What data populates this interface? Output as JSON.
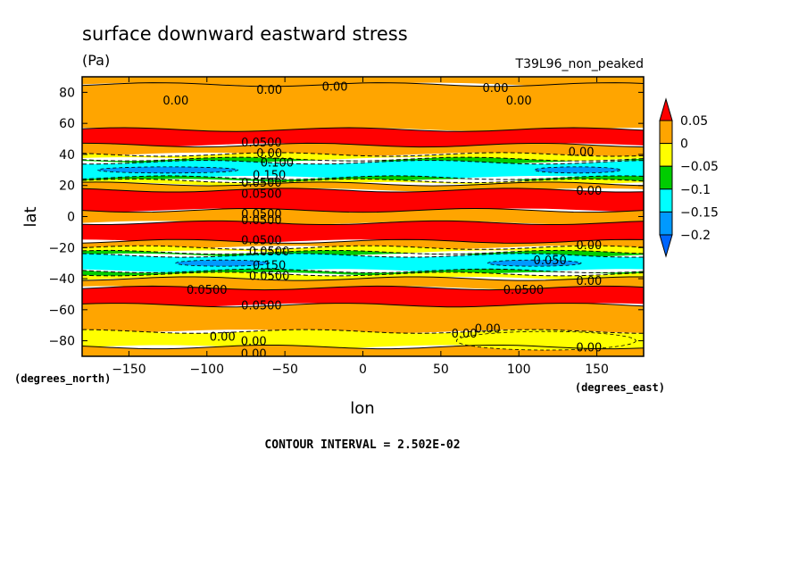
{
  "chart_data": {
    "type": "heatmap",
    "title": "surface downward eastward stress",
    "units": "(Pa)",
    "run_label": "T39L96_non_peaked",
    "xlabel": "lon",
    "ylabel": "lat",
    "x_units": "(degrees_east)",
    "y_units": "(degrees_north)",
    "xlim": [
      -180,
      180
    ],
    "ylim": [
      -90,
      90
    ],
    "x_ticks": [
      -150,
      -100,
      -50,
      0,
      50,
      100,
      150
    ],
    "y_ticks": [
      80,
      60,
      40,
      20,
      0,
      -20,
      -40,
      -60,
      -80
    ],
    "contour_interval_text": "CONTOUR INTERVAL = 2.502E-02",
    "colorbar": {
      "labels": [
        "0.05",
        "0",
        "-0.05",
        "-0.1",
        "-0.15",
        "-0.2"
      ],
      "levels": [
        0.05,
        0,
        -0.05,
        -0.1,
        -0.15,
        -0.2
      ],
      "colors": [
        "#ff0000",
        "#ffa500",
        "#ffff00",
        "#00cc00",
        "#00ffff",
        "#0099ff",
        "#0066ff"
      ]
    },
    "zonal_bands": [
      {
        "lat_min": 85,
        "lat_max": 90,
        "level": "0-0.05"
      },
      {
        "lat_min": 56,
        "lat_max": 85,
        "level": "0-0.05"
      },
      {
        "lat_min": 46,
        "lat_max": 56,
        "level": ">0.05"
      },
      {
        "lat_min": 40,
        "lat_max": 46,
        "level": "0-0.05"
      },
      {
        "lat_min": 37,
        "lat_max": 40,
        "level": "-0.05-0"
      },
      {
        "lat_min": 35,
        "lat_max": 37,
        "level": "-0.1--0.05"
      },
      {
        "lat_min": 25,
        "lat_max": 35,
        "level": "-0.15--0.1"
      },
      {
        "lat_min": 23,
        "lat_max": 25,
        "level": "-0.1--0.05"
      },
      {
        "lat_min": 21,
        "lat_max": 23,
        "level": "-0.05-0"
      },
      {
        "lat_min": 17,
        "lat_max": 21,
        "level": "0-0.05"
      },
      {
        "lat_min": 4,
        "lat_max": 17,
        "level": ">0.05"
      },
      {
        "lat_min": -4,
        "lat_max": 4,
        "level": "0-0.05"
      },
      {
        "lat_min": -16,
        "lat_max": -4,
        "level": ">0.05"
      },
      {
        "lat_min": -20,
        "lat_max": -16,
        "level": "0-0.05"
      },
      {
        "lat_min": -23,
        "lat_max": -20,
        "level": "-0.05-0"
      },
      {
        "lat_min": -25,
        "lat_max": -23,
        "level": "-0.1--0.05"
      },
      {
        "lat_min": -35,
        "lat_max": -25,
        "level": "-0.15--0.1"
      },
      {
        "lat_min": -37,
        "lat_max": -35,
        "level": "-0.1--0.05"
      },
      {
        "lat_min": -40,
        "lat_max": -37,
        "level": "-0.05-0"
      },
      {
        "lat_min": -46,
        "lat_max": -40,
        "level": "0-0.05"
      },
      {
        "lat_min": -57,
        "lat_max": -46,
        "level": ">0.05"
      },
      {
        "lat_min": -74,
        "lat_max": -57,
        "level": "0-0.05"
      },
      {
        "lat_min": -84,
        "lat_max": -74,
        "level": "-0.05-0"
      },
      {
        "lat_min": -90,
        "lat_max": -84,
        "level": "0-0.05"
      }
    ],
    "patches": [
      {
        "lon_min": -170,
        "lon_max": -80,
        "lat_min": 28,
        "lat_max": 32,
        "level": "-0.2--0.15"
      },
      {
        "lon_min": 110,
        "lon_max": 165,
        "lat_min": 28,
        "lat_max": 32,
        "level": "-0.2--0.15"
      },
      {
        "lon_min": -120,
        "lon_max": -60,
        "lat_min": -32,
        "lat_max": -28,
        "level": "-0.2--0.15"
      },
      {
        "lon_min": 80,
        "lon_max": 140,
        "lat_min": -32,
        "lat_max": -28,
        "level": "-0.2--0.15"
      },
      {
        "lon_min": 60,
        "lon_max": 175,
        "lat_min": -86,
        "lat_max": -74,
        "level": "-0.05-0"
      }
    ],
    "contour_labels": [
      {
        "text": "0.00",
        "lon": -60,
        "lat": 82
      },
      {
        "text": "0.00",
        "lon": -120,
        "lat": 75
      },
      {
        "text": "0.00",
        "lon": -18,
        "lat": 84
      },
      {
        "text": "0.00",
        "lon": 85,
        "lat": 83
      },
      {
        "text": "0.00",
        "lon": 100,
        "lat": 75
      },
      {
        "text": "0.0500",
        "lon": -65,
        "lat": 48
      },
      {
        "text": "0.00",
        "lon": 140,
        "lat": 42
      },
      {
        "text": "0.00",
        "lon": -60,
        "lat": 41
      },
      {
        "text": "0.100",
        "lon": -55,
        "lat": 35
      },
      {
        "text": "0.150",
        "lon": -60,
        "lat": 27
      },
      {
        "text": "0.0500",
        "lon": -65,
        "lat": 22
      },
      {
        "text": "0.0500",
        "lon": -65,
        "lat": 15
      },
      {
        "text": "0.00",
        "lon": 145,
        "lat": 17
      },
      {
        "text": "0.0500",
        "lon": -65,
        "lat": 2
      },
      {
        "text": "0.0500",
        "lon": -65,
        "lat": -2
      },
      {
        "text": "0.0500",
        "lon": -65,
        "lat": -15
      },
      {
        "text": "0.0500",
        "lon": -60,
        "lat": -22
      },
      {
        "text": "0.00",
        "lon": 145,
        "lat": -18
      },
      {
        "text": "0.050",
        "lon": 120,
        "lat": -28
      },
      {
        "text": "0.150",
        "lon": -60,
        "lat": -31
      },
      {
        "text": "0.0500",
        "lon": -60,
        "lat": -38
      },
      {
        "text": "0.00",
        "lon": 145,
        "lat": -41
      },
      {
        "text": "0.0500",
        "lon": -100,
        "lat": -47
      },
      {
        "text": "0.0500",
        "lon": 103,
        "lat": -47
      },
      {
        "text": "0.0500",
        "lon": -65,
        "lat": -57
      },
      {
        "text": "0.00",
        "lon": -90,
        "lat": -77
      },
      {
        "text": "0.00",
        "lon": -70,
        "lat": -80
      },
      {
        "text": "0.00",
        "lon": 65,
        "lat": -75
      },
      {
        "text": "0.00",
        "lon": 80,
        "lat": -72
      },
      {
        "text": "0.00",
        "lon": -70,
        "lat": -88
      },
      {
        "text": "0.00",
        "lon": 145,
        "lat": -84
      }
    ],
    "grid": false,
    "legend": "right"
  }
}
